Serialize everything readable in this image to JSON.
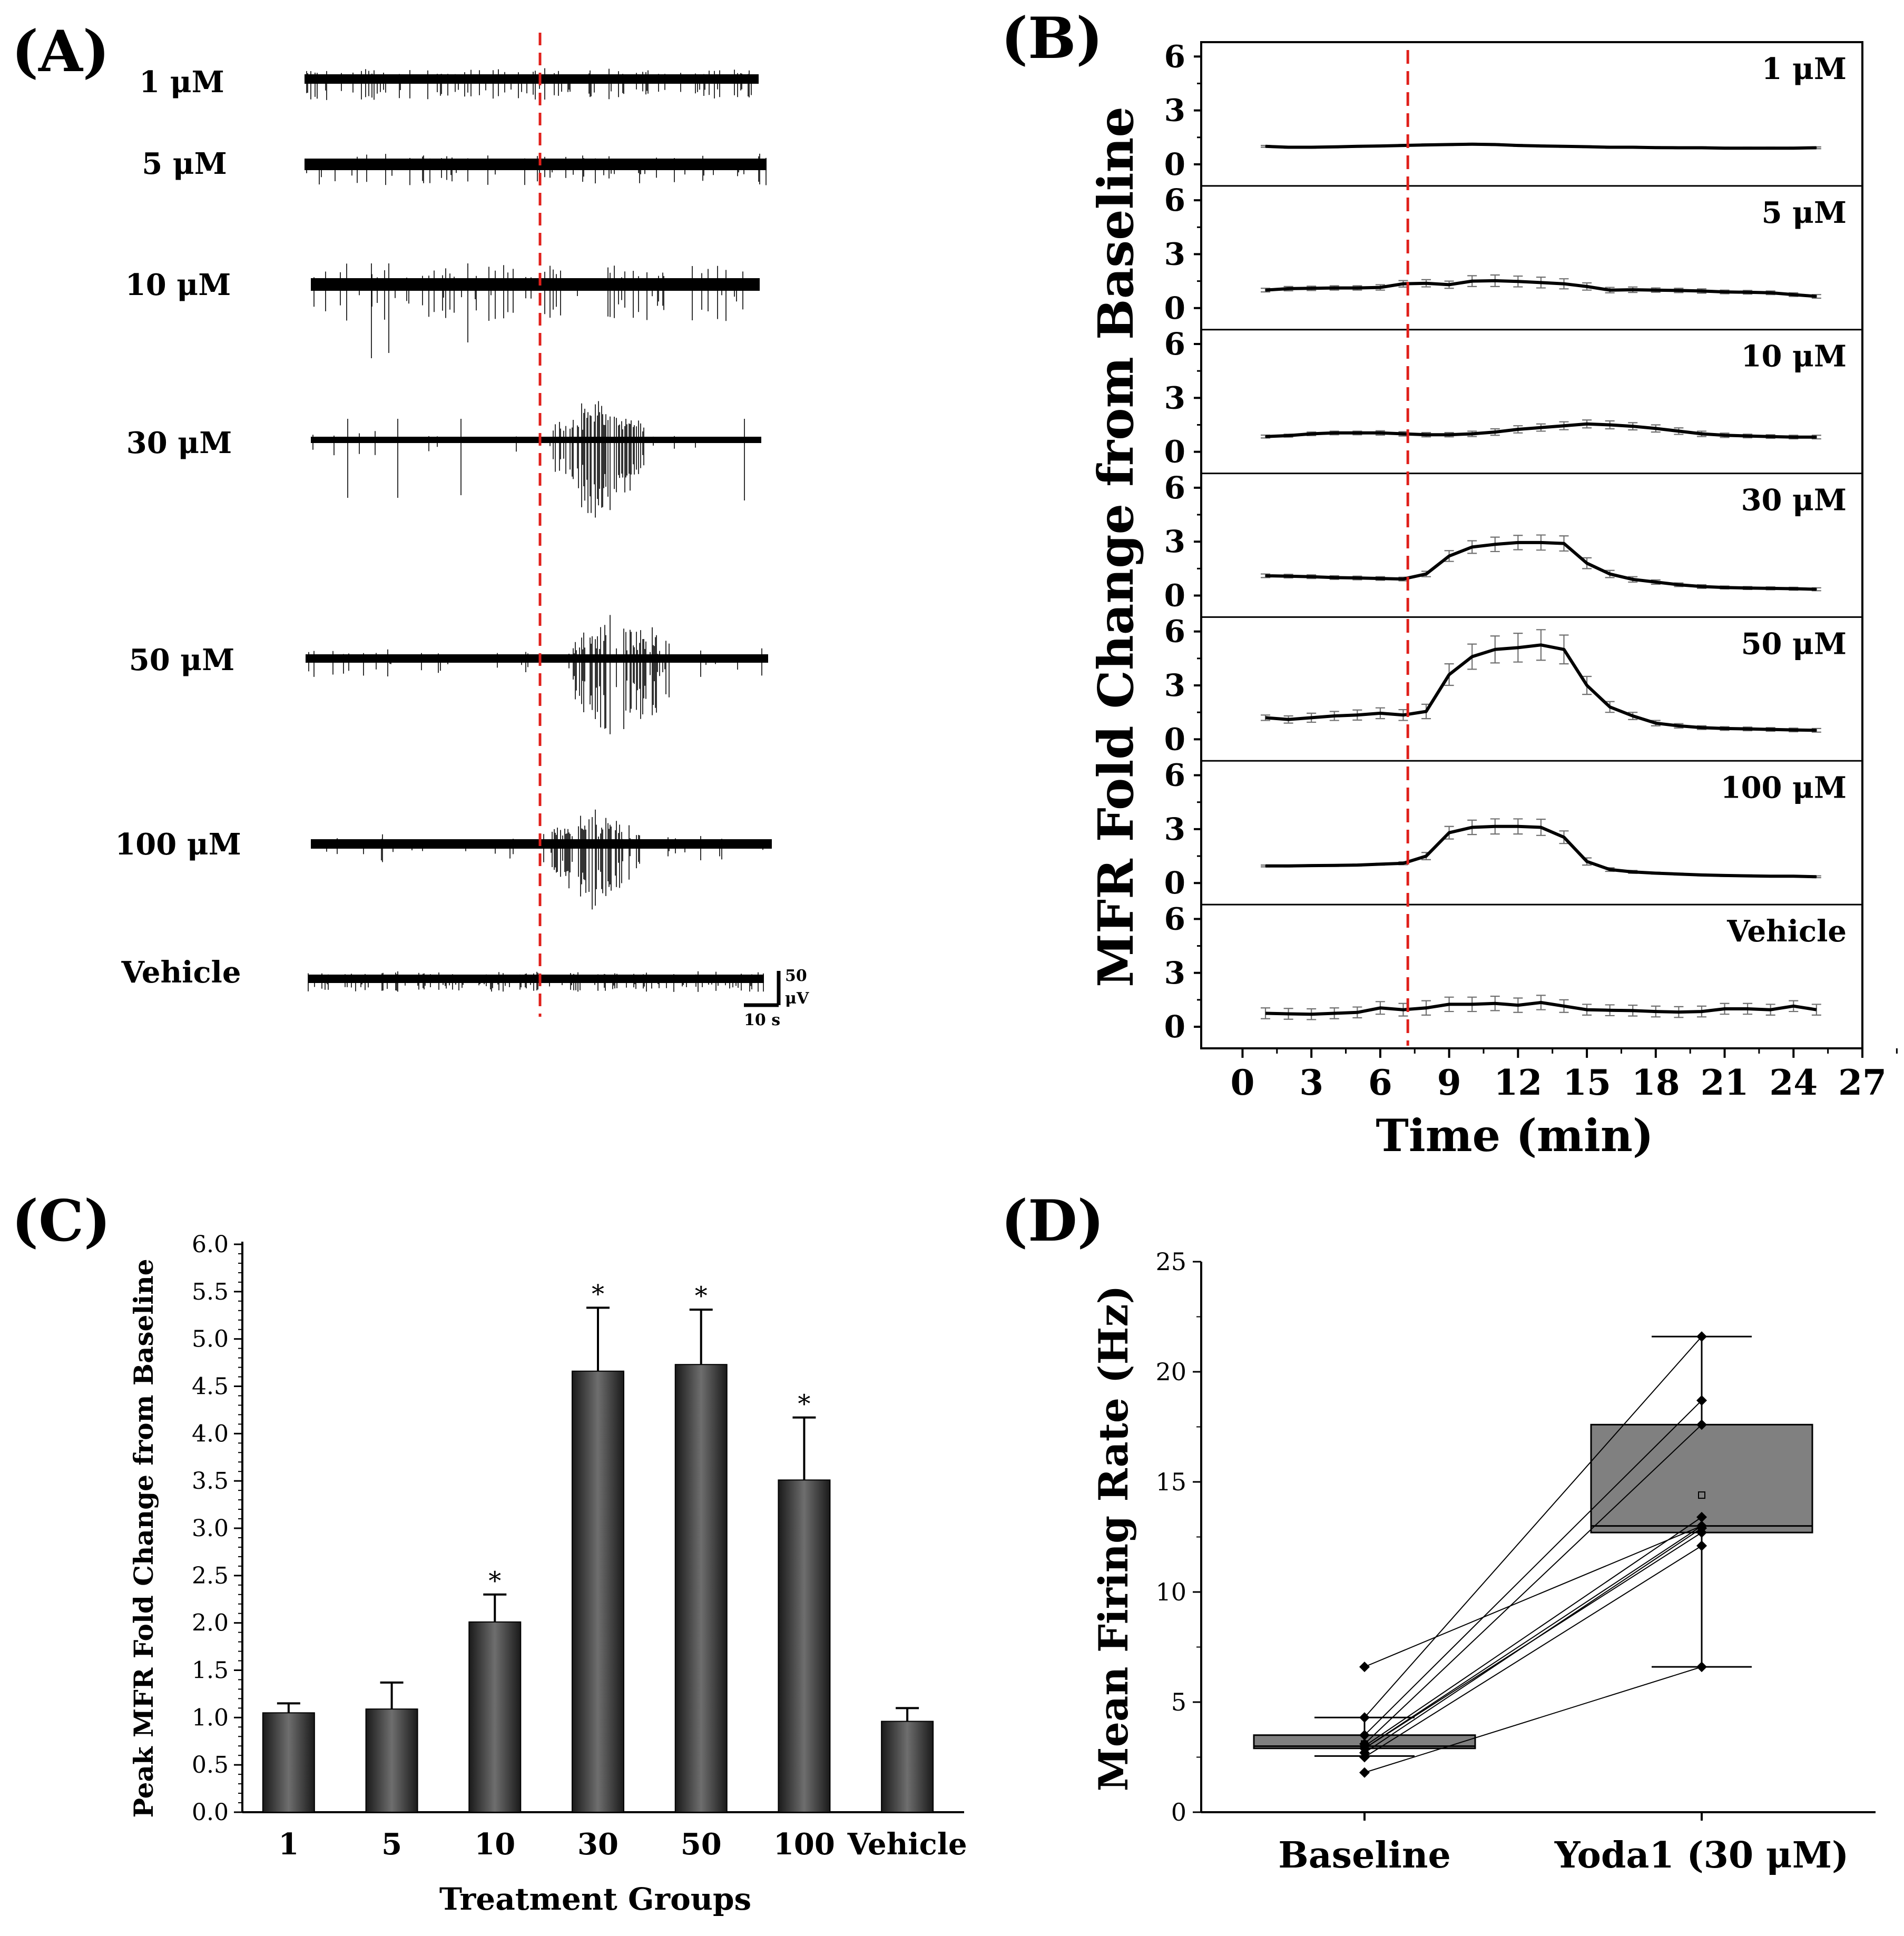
{
  "panel_labels": {
    "a": "(A)",
    "b": "(B)",
    "c": "(C)",
    "d": "(D)"
  },
  "colors": {
    "ink": "#000000",
    "stimulus_line": "#e0201b",
    "bar_dark": "#1a1a1a",
    "bar_light": "#6e6e6e",
    "box_fill": "#808080",
    "error_bar_grey": "#707070"
  },
  "chart_data": [
    {
      "panel": "A",
      "type": "other",
      "description_role": "raw extracellular voltage traces",
      "trace_labels": [
        "1 μM",
        "5 μM",
        "10 μM",
        "30 μM",
        "50 μM",
        "100 μM",
        "Vehicle"
      ],
      "scale_bar": {
        "voltage_label": "50",
        "voltage_unit": "μV",
        "time_label": "10 s"
      }
    },
    {
      "panel": "B",
      "type": "line",
      "xlabel": "Time (min)",
      "ylabel": "MFR Fold Change from Baseline",
      "xlim": [
        -1.8,
        27
      ],
      "xticks": [
        "0",
        "3",
        "6",
        "9",
        "12",
        "15",
        "18",
        "21",
        "24",
        "27"
      ],
      "ylim": [
        -1.2,
        6.8
      ],
      "yticks": [
        "0",
        "3",
        "6"
      ],
      "stimulus_time": 7.2,
      "x": [
        1,
        2,
        3,
        4,
        5,
        6,
        7,
        8,
        9,
        10,
        11,
        12,
        13,
        14,
        15,
        16,
        17,
        18,
        19,
        20,
        21,
        22,
        23,
        24,
        25
      ],
      "series": [
        {
          "name": "1 μM",
          "values": [
            1.0,
            0.95,
            0.95,
            0.97,
            1.0,
            1.02,
            1.05,
            1.08,
            1.1,
            1.12,
            1.1,
            1.05,
            1.02,
            1.0,
            0.98,
            0.95,
            0.95,
            0.93,
            0.92,
            0.92,
            0.9,
            0.9,
            0.9,
            0.9,
            0.92
          ],
          "errors": [
            0.05,
            0.05,
            0.05,
            0.05,
            0.05,
            0.05,
            0.05,
            0.05,
            0.05,
            0.05,
            0.05,
            0.05,
            0.05,
            0.05,
            0.05,
            0.05,
            0.05,
            0.05,
            0.05,
            0.05,
            0.05,
            0.05,
            0.05,
            0.05,
            0.05
          ]
        },
        {
          "name": "5 μM",
          "values": [
            1.0,
            1.08,
            1.1,
            1.12,
            1.12,
            1.15,
            1.35,
            1.38,
            1.3,
            1.5,
            1.52,
            1.48,
            1.42,
            1.35,
            1.2,
            1.0,
            1.02,
            1.0,
            0.98,
            0.95,
            0.9,
            0.88,
            0.85,
            0.75,
            0.65
          ],
          "errors": [
            0.1,
            0.12,
            0.12,
            0.12,
            0.12,
            0.15,
            0.18,
            0.2,
            0.2,
            0.3,
            0.32,
            0.3,
            0.3,
            0.28,
            0.2,
            0.15,
            0.15,
            0.12,
            0.12,
            0.12,
            0.1,
            0.1,
            0.1,
            0.1,
            0.1
          ]
        },
        {
          "name": "10 μM",
          "values": [
            0.85,
            0.9,
            1.0,
            1.05,
            1.05,
            1.05,
            1.0,
            0.95,
            0.95,
            1.0,
            1.1,
            1.25,
            1.35,
            1.45,
            1.55,
            1.5,
            1.42,
            1.3,
            1.15,
            1.0,
            0.92,
            0.88,
            0.85,
            0.82,
            0.82
          ],
          "errors": [
            0.08,
            0.08,
            0.1,
            0.1,
            0.1,
            0.12,
            0.12,
            0.12,
            0.12,
            0.15,
            0.18,
            0.2,
            0.2,
            0.22,
            0.22,
            0.22,
            0.2,
            0.2,
            0.18,
            0.15,
            0.12,
            0.1,
            0.1,
            0.1,
            0.1
          ]
        },
        {
          "name": "30 μM",
          "values": [
            1.1,
            1.08,
            1.05,
            1.0,
            0.98,
            0.95,
            0.92,
            1.2,
            2.2,
            2.7,
            2.85,
            2.95,
            2.95,
            2.9,
            1.8,
            1.2,
            0.9,
            0.75,
            0.6,
            0.5,
            0.45,
            0.42,
            0.4,
            0.38,
            0.35
          ],
          "errors": [
            0.1,
            0.1,
            0.1,
            0.1,
            0.1,
            0.1,
            0.1,
            0.15,
            0.3,
            0.35,
            0.4,
            0.4,
            0.42,
            0.42,
            0.3,
            0.2,
            0.15,
            0.12,
            0.1,
            0.1,
            0.08,
            0.08,
            0.08,
            0.08,
            0.08
          ]
        },
        {
          "name": "50 μM",
          "values": [
            1.2,
            1.1,
            1.2,
            1.3,
            1.35,
            1.45,
            1.35,
            1.55,
            3.6,
            4.6,
            5.0,
            5.1,
            5.25,
            5.0,
            3.0,
            1.8,
            1.3,
            0.9,
            0.75,
            0.65,
            0.6,
            0.58,
            0.55,
            0.52,
            0.5
          ],
          "errors": [
            0.15,
            0.2,
            0.25,
            0.25,
            0.28,
            0.3,
            0.3,
            0.4,
            0.6,
            0.7,
            0.75,
            0.8,
            0.85,
            0.8,
            0.5,
            0.3,
            0.2,
            0.15,
            0.12,
            0.1,
            0.1,
            0.1,
            0.1,
            0.1,
            0.1
          ]
        },
        {
          "name": "100 μM",
          "values": [
            0.95,
            0.95,
            0.97,
            0.98,
            1.0,
            1.05,
            1.1,
            1.5,
            2.8,
            3.1,
            3.15,
            3.15,
            3.1,
            2.55,
            1.2,
            0.75,
            0.62,
            0.55,
            0.5,
            0.45,
            0.42,
            0.4,
            0.38,
            0.38,
            0.35
          ],
          "errors": [
            0.05,
            0.05,
            0.05,
            0.05,
            0.05,
            0.05,
            0.08,
            0.2,
            0.35,
            0.4,
            0.42,
            0.42,
            0.45,
            0.35,
            0.2,
            0.1,
            0.08,
            0.05,
            0.05,
            0.05,
            0.05,
            0.05,
            0.05,
            0.05,
            0.05
          ]
        },
        {
          "name": "Vehicle",
          "values": [
            0.75,
            0.72,
            0.7,
            0.75,
            0.8,
            1.05,
            0.95,
            1.05,
            1.25,
            1.25,
            1.3,
            1.2,
            1.35,
            1.15,
            0.95,
            0.92,
            0.9,
            0.85,
            0.82,
            0.85,
            1.0,
            1.0,
            0.95,
            1.15,
            0.95
          ],
          "errors": [
            0.3,
            0.3,
            0.3,
            0.3,
            0.3,
            0.35,
            0.35,
            0.4,
            0.4,
            0.4,
            0.4,
            0.4,
            0.4,
            0.35,
            0.3,
            0.3,
            0.3,
            0.3,
            0.3,
            0.3,
            0.3,
            0.3,
            0.3,
            0.3,
            0.3
          ]
        }
      ]
    },
    {
      "panel": "C",
      "type": "bar",
      "xlabel": "Treatment Groups",
      "ylabel": "Peak MFR Fold Change from Baseline",
      "ylim": [
        0,
        6.0
      ],
      "yticks": [
        "0.0",
        "0.5",
        "1.0",
        "1.5",
        "2.0",
        "2.5",
        "3.0",
        "3.5",
        "4.0",
        "4.5",
        "5.0",
        "5.5",
        "6.0"
      ],
      "categories": [
        "1",
        "5",
        "10",
        "30",
        "50",
        "100",
        "Vehicle"
      ],
      "values": [
        1.05,
        1.09,
        2.01,
        4.66,
        4.73,
        3.51,
        0.96
      ],
      "errors": [
        0.1,
        0.28,
        0.29,
        0.67,
        0.58,
        0.66,
        0.14
      ],
      "significance": [
        "",
        "",
        "*",
        "*",
        "*",
        "*",
        ""
      ]
    },
    {
      "panel": "D",
      "type": "box",
      "ylabel": "Mean Firing Rate (Hz)",
      "ylim": [
        0,
        25
      ],
      "yticks": [
        "0",
        "5",
        "10",
        "15",
        "20",
        "25"
      ],
      "categories": [
        "Baseline",
        "Yoda1 (30 μM)"
      ],
      "boxes": [
        {
          "q1": 2.9,
          "median": 3.0,
          "q3": 3.5,
          "whisker_low": 2.55,
          "whisker_high": 4.3,
          "mean": 3.1
        },
        {
          "q1": 12.7,
          "median": 13.0,
          "q3": 17.6,
          "whisker_low": 6.6,
          "whisker_high": 21.6,
          "mean": 14.4
        }
      ],
      "paired_points": [
        [
          6.6,
          13.0
        ],
        [
          4.3,
          21.6
        ],
        [
          3.5,
          18.7
        ],
        [
          3.1,
          17.6
        ],
        [
          3.0,
          13.4
        ],
        [
          2.9,
          13.0
        ],
        [
          2.7,
          12.9
        ],
        [
          2.9,
          12.7
        ],
        [
          2.5,
          12.1
        ],
        [
          1.8,
          6.6
        ]
      ]
    }
  ]
}
